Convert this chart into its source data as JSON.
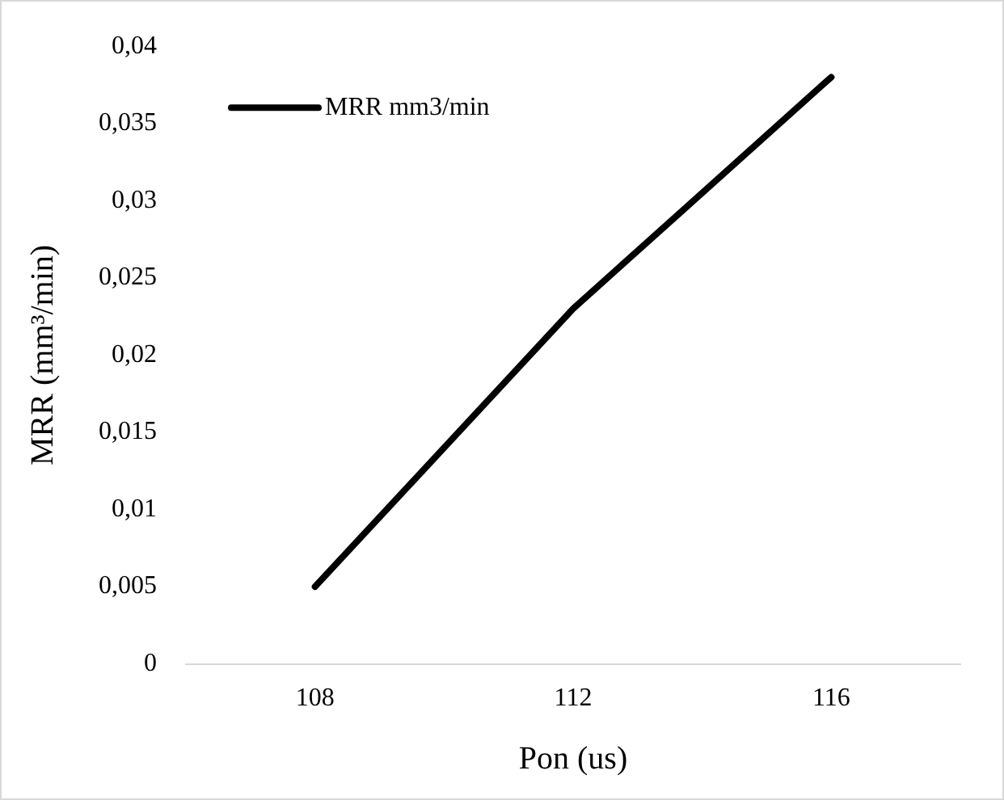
{
  "chart_data": {
    "type": "line",
    "xlabel": "Pon (us)",
    "ylabel": "MRR (mm³/min)",
    "categories": [
      "108",
      "112",
      "116"
    ],
    "series": [
      {
        "name": "MRR mm3/min",
        "color": "#000000",
        "values": [
          0.005,
          0.023,
          0.038
        ]
      }
    ],
    "ylim": [
      0,
      0.04
    ],
    "yticks": [
      0,
      {
        "value": 0.005,
        "label": "0,005"
      },
      {
        "value": 0.01,
        "label": "0,01"
      },
      {
        "value": 0.015,
        "label": "0,015"
      },
      {
        "value": 0.02,
        "label": "0,02"
      },
      {
        "value": 0.025,
        "label": "0,025"
      },
      {
        "value": 0.03,
        "label": "0,03"
      },
      {
        "value": 0.035,
        "label": "0,035"
      },
      {
        "value": 0.04,
        "label": "0,04"
      }
    ],
    "grid": false,
    "legend": "top left",
    "marker": "none",
    "line_style": "solid"
  }
}
